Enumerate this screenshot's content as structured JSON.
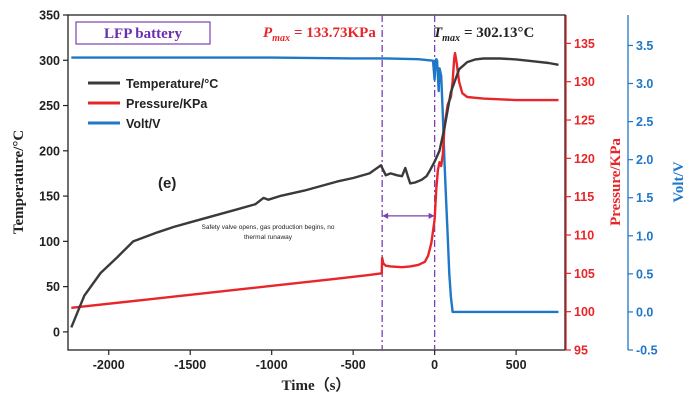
{
  "chart_data": {
    "type": "line",
    "title": "LFP battery",
    "panel_label": "(e)",
    "xlabel": "Time（s）",
    "xlim": [
      -2250,
      800
    ],
    "xticks": [
      -2000,
      -1500,
      -1000,
      -500,
      0,
      500
    ],
    "xtick_labels": [
      "-2000",
      "-1500",
      "-1000",
      "-500",
      "0",
      "500"
    ],
    "axes": {
      "left": {
        "label": "Temperature/°C",
        "lim": [
          -20,
          350
        ],
        "ticks": [
          0,
          50,
          100,
          150,
          200,
          250,
          300,
          350
        ],
        "tick_labels": [
          "0",
          "50",
          "100",
          "150",
          "200",
          "250",
          "300",
          "350"
        ],
        "color": "#222222"
      },
      "right1": {
        "label": "Pressure/KPa",
        "lim": [
          95,
          138.7
        ],
        "ticks": [
          95,
          100,
          105,
          110,
          115,
          120,
          125,
          130,
          135
        ],
        "tick_labels": [
          "95",
          "100",
          "105",
          "110",
          "115",
          "120",
          "125",
          "130",
          "135"
        ],
        "color": "#e8262a"
      },
      "right2": {
        "label": "Volt/V",
        "lim": [
          -0.5,
          3.9
        ],
        "ticks": [
          -0.5,
          0,
          0.5,
          1,
          1.5,
          2,
          2.5,
          3,
          3.5
        ],
        "tick_labels": [
          "-0.5",
          "0.0",
          "0.5",
          "1.0",
          "1.5",
          "2.0",
          "2.5",
          "3.0",
          "3.5"
        ],
        "color": "#1f77c8"
      }
    },
    "legend_position": "upper-left",
    "series": [
      {
        "name": "Temperature/°C",
        "axis": "left",
        "color": "#3a3a3a",
        "x": [
          -2230,
          -2150,
          -2050,
          -1950,
          -1850,
          -1700,
          -1600,
          -1500,
          -1400,
          -1300,
          -1200,
          -1100,
          -1050,
          -1020,
          -950,
          -800,
          -700,
          -600,
          -500,
          -400,
          -330,
          -300,
          -270,
          -230,
          -200,
          -180,
          -165,
          -150,
          -120,
          -80,
          -50,
          -30,
          0,
          30,
          60,
          100,
          150,
          200,
          250,
          300,
          400,
          500,
          600,
          700,
          760
        ],
        "y": [
          5,
          40,
          65,
          82,
          100,
          110,
          116,
          121,
          126,
          131,
          136,
          141,
          148,
          146,
          150,
          156,
          161,
          166,
          170,
          175,
          184,
          173,
          175,
          173,
          172,
          181,
          172,
          164,
          165,
          168,
          172,
          178,
          188,
          200,
          225,
          265,
          290,
          298,
          301,
          302,
          302,
          301,
          299,
          297,
          295
        ]
      },
      {
        "name": "Pressure/KPa",
        "axis": "right1",
        "color": "#e8262a",
        "x": [
          -2230,
          -1800,
          -1500,
          -1200,
          -900,
          -600,
          -400,
          -325,
          -322,
          -315,
          -300,
          -270,
          -200,
          -150,
          -100,
          -60,
          -40,
          -20,
          0,
          10,
          20,
          30,
          40,
          50,
          60,
          70,
          80,
          90,
          100,
          110,
          120,
          125,
          135,
          150,
          170,
          200,
          250,
          300,
          400,
          500,
          600,
          700,
          760
        ],
        "y": [
          100.5,
          101.5,
          102.2,
          102.9,
          103.6,
          104.3,
          104.8,
          105,
          107,
          106.3,
          106,
          105.9,
          105.8,
          105.9,
          106.1,
          106.5,
          107.3,
          109,
          112,
          116,
          118.5,
          119.5,
          119,
          120.5,
          124,
          125.5,
          127,
          127.5,
          128,
          130,
          133,
          133.73,
          132.5,
          130,
          128.5,
          128,
          127.9,
          127.8,
          127.7,
          127.6,
          127.6,
          127.6,
          127.6
        ]
      },
      {
        "name": "Volt/V",
        "axis": "right2",
        "color": "#1f77c8",
        "x": [
          -2230,
          -1500,
          -1000,
          -500,
          -300,
          -100,
          -10,
          0,
          5,
          10,
          15,
          20,
          25,
          30,
          40,
          50,
          60,
          70,
          80,
          90,
          100,
          110,
          760
        ],
        "y": [
          3.34,
          3.34,
          3.34,
          3.33,
          3.33,
          3.32,
          3.3,
          3.05,
          3.3,
          3.32,
          3.3,
          3.1,
          2.9,
          3.2,
          3.1,
          2.6,
          2.0,
          1.5,
          1.0,
          0.5,
          0.2,
          0.0,
          0.0
        ]
      }
    ],
    "vlines": [
      {
        "x": -322,
        "color": "#7b3fb0"
      },
      {
        "x": 0,
        "color": "#7b3fb0"
      }
    ],
    "annotations": {
      "pmax": {
        "text": "= 133.73KPa",
        "symbol": "P",
        "sub": "max",
        "color": "#e8262a",
        "x": 125,
        "y": 133.73
      },
      "tmax": {
        "text": "= 302.13°C",
        "symbol": "T",
        "sub": "max",
        "color": "#222222"
      },
      "safety": {
        "lines": [
          "Safety valve opens, gas production begins, no",
          "thermal runaway"
        ],
        "arrow_from": -322,
        "arrow_to": 0,
        "arrow_y": 112.5
      }
    }
  }
}
